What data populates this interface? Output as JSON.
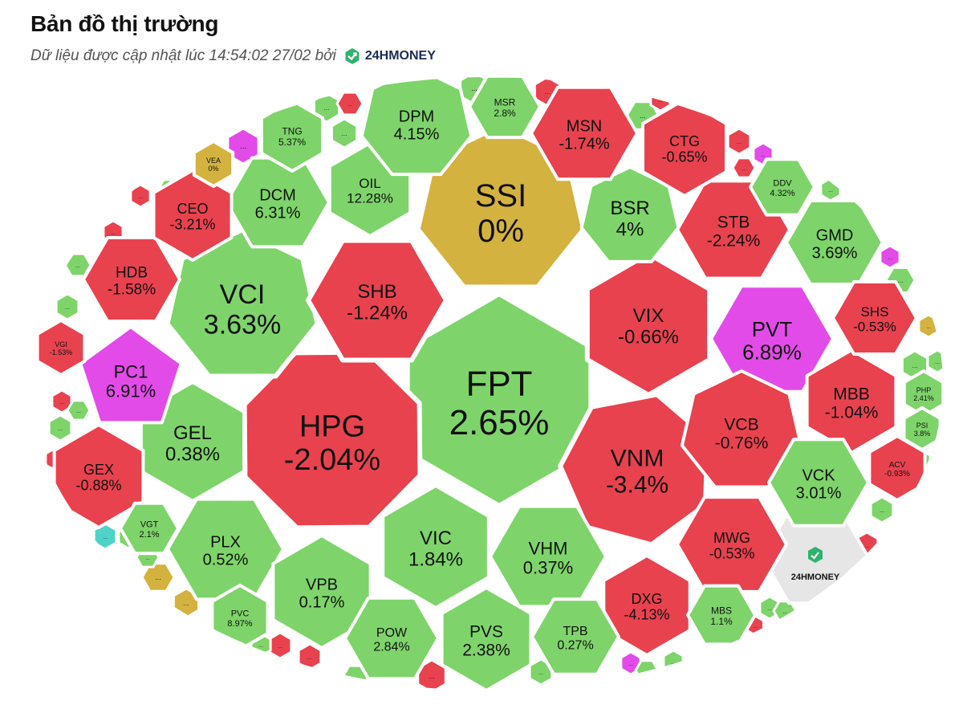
{
  "header": {
    "title": "Bản đồ thị trường",
    "subtitle": "Dữ liệu được cập nhật lúc 14:54:02 27/02 bởi",
    "brand": "24HMONEY"
  },
  "colors": {
    "up": "#7ed46a",
    "down": "#e8424f",
    "flat": "#d4b23f",
    "ceiling": "#e24be8",
    "floor": "#4fd3c8",
    "logo": "#e6e6e6",
    "border": "#ffffff"
  },
  "chart_data": {
    "type": "heatmap",
    "watermark": "24HMONEY",
    "tiles": [
      {
        "ticker": "FPT",
        "change": "2.65%",
        "status": "up"
      },
      {
        "ticker": "HPG",
        "change": "-2.04%",
        "status": "down"
      },
      {
        "ticker": "SSI",
        "change": "0%",
        "status": "flat"
      },
      {
        "ticker": "VCI",
        "change": "3.63%",
        "status": "up"
      },
      {
        "ticker": "SHB",
        "change": "-1.24%",
        "status": "down"
      },
      {
        "ticker": "VNM",
        "change": "-3.4%",
        "status": "down"
      },
      {
        "ticker": "VIX",
        "change": "-0.66%",
        "status": "down"
      },
      {
        "ticker": "PVT",
        "change": "6.89%",
        "status": "ceiling"
      },
      {
        "ticker": "VIC",
        "change": "1.84%",
        "status": "up"
      },
      {
        "ticker": "VHM",
        "change": "0.37%",
        "status": "up"
      },
      {
        "ticker": "GEL",
        "change": "0.38%",
        "status": "up"
      },
      {
        "ticker": "PC1",
        "change": "6.91%",
        "status": "ceiling"
      },
      {
        "ticker": "BSR",
        "change": "4%",
        "status": "up"
      },
      {
        "ticker": "STB",
        "change": "-2.24%",
        "status": "down"
      },
      {
        "ticker": "DCM",
        "change": "6.31%",
        "status": "up"
      },
      {
        "ticker": "OIL",
        "change": "12.28%",
        "status": "up"
      },
      {
        "ticker": "DPM",
        "change": "4.15%",
        "status": "up"
      },
      {
        "ticker": "MSN",
        "change": "-1.74%",
        "status": "down"
      },
      {
        "ticker": "CTG",
        "change": "-0.65%",
        "status": "down"
      },
      {
        "ticker": "GMD",
        "change": "3.69%",
        "status": "up"
      },
      {
        "ticker": "VCB",
        "change": "-0.76%",
        "status": "down"
      },
      {
        "ticker": "MBB",
        "change": "-1.04%",
        "status": "down"
      },
      {
        "ticker": "VCK",
        "change": "3.01%",
        "status": "up"
      },
      {
        "ticker": "MWG",
        "change": "-0.53%",
        "status": "down"
      },
      {
        "ticker": "DXG",
        "change": "-4.13%",
        "status": "down"
      },
      {
        "ticker": "HDB",
        "change": "-1.58%",
        "status": "down"
      },
      {
        "ticker": "CEO",
        "change": "-3.21%",
        "status": "down"
      },
      {
        "ticker": "GEX",
        "change": "-0.88%",
        "status": "down"
      },
      {
        "ticker": "PLX",
        "change": "0.52%",
        "status": "up"
      },
      {
        "ticker": "VPB",
        "change": "0.17%",
        "status": "up"
      },
      {
        "ticker": "POW",
        "change": "2.84%",
        "status": "up"
      },
      {
        "ticker": "PVS",
        "change": "2.38%",
        "status": "up"
      },
      {
        "ticker": "TPB",
        "change": "0.27%",
        "status": "up"
      },
      {
        "ticker": "SHS",
        "change": "-0.53%",
        "status": "down"
      },
      {
        "ticker": "MSR",
        "change": "2.8%",
        "status": "up"
      },
      {
        "ticker": "TNG",
        "change": "5.37%",
        "status": "up"
      },
      {
        "ticker": "VEA",
        "change": "0%",
        "status": "flat"
      },
      {
        "ticker": "DDV",
        "change": "4.32%",
        "status": "up"
      },
      {
        "ticker": "VGI",
        "change": "-1.53%",
        "status": "down"
      },
      {
        "ticker": "VGT",
        "change": "2.1%",
        "status": "up"
      },
      {
        "ticker": "PVC",
        "change": "8.97%",
        "status": "up"
      },
      {
        "ticker": "MBS",
        "change": "1.1%",
        "status": "up"
      },
      {
        "ticker": "PHP",
        "change": "2.41%",
        "status": "up"
      },
      {
        "ticker": "PSI",
        "change": "3.8%",
        "status": "up"
      },
      {
        "ticker": "ACV",
        "change": "-0.93%",
        "status": "down"
      }
    ],
    "small_tiles": [
      {
        "label": "...",
        "status": "up"
      },
      {
        "label": "...",
        "status": "down"
      },
      {
        "label": "...",
        "status": "ceiling"
      },
      {
        "label": "...",
        "status": "flat"
      },
      {
        "label": "...",
        "status": "floor"
      }
    ]
  }
}
